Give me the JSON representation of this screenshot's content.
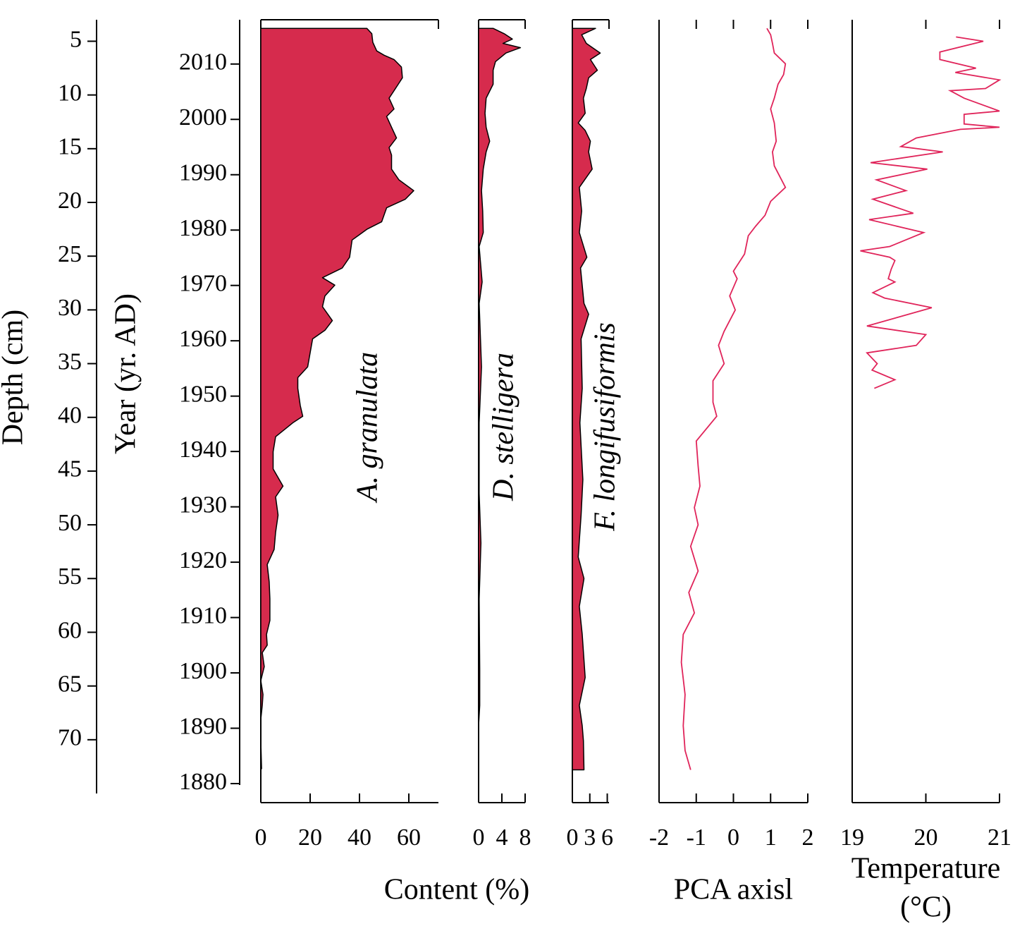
{
  "depth_axis": {
    "label": "Depth (cm)",
    "lim": [
      3,
      75
    ],
    "ticks": [
      5,
      10,
      15,
      20,
      25,
      30,
      35,
      40,
      45,
      50,
      55,
      60,
      65,
      70
    ]
  },
  "year_axis": {
    "label": "Year (yr. AD)",
    "lim": [
      2018,
      1880
    ],
    "ticks": [
      2010,
      2000,
      1990,
      1980,
      1970,
      1960,
      1950,
      1940,
      1930,
      1920,
      1910,
      1900,
      1890,
      1880
    ]
  },
  "content_label": "Content (%)",
  "chart_data": [
    {
      "type": "area",
      "name": "A. granulata",
      "color": "#d62b4d",
      "xlim": [
        0,
        72
      ],
      "xticks": [
        0,
        20,
        40,
        60
      ],
      "depth": [
        3.8,
        4.3,
        5.1,
        5.9,
        6.3,
        6.7,
        7.4,
        8.4,
        8.9,
        9.6,
        10.3,
        11.3,
        12.0,
        13.0,
        14.0,
        14.9,
        15.6,
        16.9,
        17.9,
        18.9,
        19.7,
        20.5,
        21.8,
        22.5,
        23.5,
        25.1,
        26.1,
        27.0,
        27.7,
        28.7,
        29.7,
        31.0,
        31.9,
        32.7,
        34.0,
        35.3,
        36.3,
        37.3,
        38.9,
        39.9,
        40.5,
        41.8,
        43.2,
        44.8,
        46.4,
        47.4,
        49.1,
        50.7,
        52.3,
        53.7,
        55.3,
        56.9,
        58.9,
        60.2,
        61.2,
        61.9,
        63.2,
        64.5,
        65.8,
        66.8,
        68.1,
        70.1,
        72.7
      ],
      "values": [
        43,
        45,
        45.4,
        47,
        50,
        54,
        57,
        57.4,
        56,
        54,
        52,
        54,
        51,
        53,
        55,
        52,
        53,
        53,
        56,
        62,
        58.6,
        51,
        49,
        43,
        37,
        36,
        33,
        25,
        30,
        26,
        25,
        29,
        26,
        21,
        20,
        19,
        15,
        15,
        16,
        17,
        13,
        6,
        5,
        5,
        9,
        6,
        7,
        6,
        5.4,
        2.6,
        3.4,
        3.7,
        3.7,
        2.3,
        2.6,
        0.6,
        1.4,
        0,
        0.9,
        0.6,
        0,
        0,
        0.3
      ]
    },
    {
      "type": "area",
      "name": "D. stelligera",
      "color": "#d62b4d",
      "xlim": [
        0,
        8
      ],
      "xticks": [
        0,
        4,
        8
      ],
      "depth": [
        3.8,
        4.3,
        4.8,
        5.2,
        5.6,
        6.1,
        6.9,
        7.7,
        9.0,
        10.3,
        11.7,
        13.0,
        14.3,
        15.3,
        16.9,
        18.9,
        20.8,
        22.8,
        24.1,
        27.4,
        29.4,
        35.3,
        40.5,
        47.1,
        51.7,
        56.9,
        63.5,
        66.8,
        68.7
      ],
      "values": [
        2.5,
        4.4,
        5.8,
        4.2,
        7.2,
        4.7,
        2.9,
        2.5,
        2.5,
        1.3,
        1.1,
        1.3,
        1.9,
        1.3,
        0.8,
        0.5,
        0.7,
        0.8,
        0.1,
        0.6,
        0.1,
        0.5,
        0.1,
        0.1,
        0.4,
        0.1,
        0.2,
        0.2,
        0
      ]
    },
    {
      "type": "area",
      "name": "F. longifusiformis",
      "color": "#d62b4d",
      "xlim": [
        0,
        6.3
      ],
      "xticks": [
        0,
        3,
        6
      ],
      "depth": [
        3.8,
        4.4,
        5.2,
        6.1,
        6.7,
        7.7,
        8.4,
        9.4,
        10.3,
        11.7,
        12.6,
        13.3,
        14.3,
        15.3,
        16.9,
        18.6,
        20.8,
        22.8,
        25.1,
        26.1,
        29.4,
        30.4,
        32.7,
        37.3,
        40.5,
        45.8,
        49.1,
        53.0,
        55.0,
        57.6,
        60.2,
        64.2,
        66.8,
        68.7,
        70.1,
        72.8
      ],
      "values": [
        4.0,
        1.6,
        2.4,
        4.8,
        3.1,
        4.3,
        2.8,
        2.4,
        1.9,
        2.2,
        1.0,
        2.2,
        3.1,
        2.8,
        3.4,
        1.2,
        1.6,
        1.2,
        2.5,
        1.4,
        2.0,
        2.8,
        1.5,
        1.7,
        1.3,
        1.8,
        1.5,
        1.0,
        2.0,
        1.2,
        1.7,
        2.2,
        1.2,
        1.7,
        1.9,
        2.0
      ]
    },
    {
      "type": "line",
      "xlabel": "PCA axisl",
      "color": "#e0245a",
      "xlim": [
        -2,
        2
      ],
      "xticks": [
        -2,
        -1,
        0,
        1,
        2
      ],
      "depth": [
        3.8,
        4.4,
        5.2,
        6.1,
        7.1,
        8.1,
        9.0,
        10.3,
        11.3,
        12.6,
        14.3,
        15.3,
        16.6,
        18.6,
        19.9,
        21.2,
        22.2,
        23.1,
        24.8,
        26.4,
        27.1,
        28.7,
        30.0,
        32.0,
        33.3,
        35.0,
        36.6,
        38.6,
        39.9,
        42.2,
        44.5,
        46.4,
        48.4,
        50.0,
        52.0,
        54.3,
        56.3,
        58.2,
        60.2,
        62.8,
        65.8,
        68.7,
        71.0,
        72.8
      ],
      "values": [
        0.9,
        1.0,
        1.05,
        1.1,
        1.4,
        1.35,
        1.2,
        1.1,
        1.0,
        1.1,
        1.15,
        1.05,
        1.1,
        1.4,
        1.0,
        0.85,
        0.6,
        0.4,
        0.3,
        0,
        0.1,
        -0.1,
        0.05,
        -0.25,
        -0.4,
        -0.25,
        -0.55,
        -0.55,
        -0.45,
        -1.0,
        -0.95,
        -0.9,
        -1.05,
        -0.95,
        -1.15,
        -0.95,
        -1.2,
        -1.05,
        -1.35,
        -1.4,
        -1.3,
        -1.35,
        -1.3,
        -1.15
      ]
    },
    {
      "type": "line",
      "xlabel": [
        "Temperature",
        "(°C)"
      ],
      "color": "#e0245a",
      "xlim": [
        19,
        21
      ],
      "xticks": [
        19,
        20,
        21
      ],
      "depth": [
        4.6,
        5.0,
        6.0,
        6.7,
        7.5,
        7.9,
        8.6,
        9.4,
        9.6,
        10.3,
        11.5,
        11.8,
        12.7,
        13.0,
        13.2,
        14.0,
        14.8,
        15.3,
        16.3,
        16.9,
        17.9,
        18.9,
        19.7,
        21.0,
        21.6,
        22.8,
        24.1,
        24.5,
        25.1,
        25.4,
        26.2,
        27.1,
        27.4,
        28.4,
        28.9,
        29.8,
        31.5,
        32.3,
        33.3,
        34.0,
        35.0,
        35.6,
        36.5,
        37.3
      ],
      "values": [
        20.41,
        20.78,
        20.19,
        20.19,
        20.68,
        20.4,
        21.0,
        20.81,
        20.33,
        20.52,
        21.0,
        20.52,
        20.52,
        21.0,
        20.47,
        19.87,
        19.66,
        20.23,
        19.25,
        20.02,
        19.33,
        19.73,
        19.28,
        19.83,
        19.23,
        19.97,
        19.51,
        19.11,
        19.51,
        19.58,
        19.53,
        19.49,
        19.58,
        19.28,
        19.44,
        20.08,
        19.2,
        20.0,
        19.87,
        19.2,
        19.34,
        19.27,
        19.58,
        19.3
      ]
    }
  ]
}
